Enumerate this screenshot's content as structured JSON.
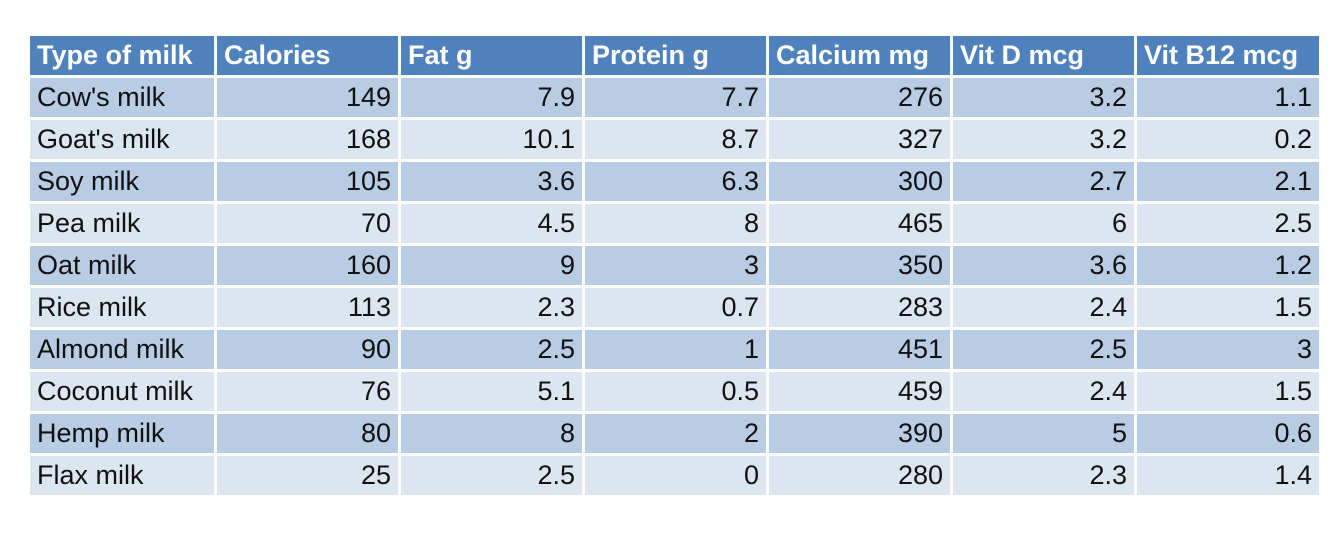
{
  "table": {
    "headers": [
      "Type of milk",
      "Calories",
      "Fat g",
      "Protein g",
      "Calcium mg",
      "Vit D mcg",
      "Vit B12 mcg"
    ],
    "rows": [
      [
        "Cow's milk",
        "149",
        "7.9",
        "7.7",
        "276",
        "3.2",
        "1.1"
      ],
      [
        "Goat's milk",
        "168",
        "10.1",
        "8.7",
        "327",
        "3.2",
        "0.2"
      ],
      [
        "Soy milk",
        "105",
        "3.6",
        "6.3",
        "300",
        "2.7",
        "2.1"
      ],
      [
        "Pea milk",
        "70",
        "4.5",
        "8",
        "465",
        "6",
        "2.5"
      ],
      [
        "Oat milk",
        "160",
        "9",
        "3",
        "350",
        "3.6",
        "1.2"
      ],
      [
        "Rice milk",
        "113",
        "2.3",
        "0.7",
        "283",
        "2.4",
        "1.5"
      ],
      [
        "Almond milk",
        "90",
        "2.5",
        "1",
        "451",
        "2.5",
        "3"
      ],
      [
        "Coconut milk",
        "76",
        "5.1",
        "0.5",
        "459",
        "2.4",
        "1.5"
      ],
      [
        "Hemp milk",
        "80",
        "8",
        "2",
        "390",
        "5",
        "0.6"
      ],
      [
        "Flax milk",
        "25",
        "2.5",
        "0",
        "280",
        "2.3",
        "1.4"
      ]
    ]
  },
  "colors": {
    "header_bg": "#4f81bd",
    "header_text": "#ffffff",
    "row_band_dark": "#b8cce4",
    "row_band_light": "#dce6f1"
  }
}
